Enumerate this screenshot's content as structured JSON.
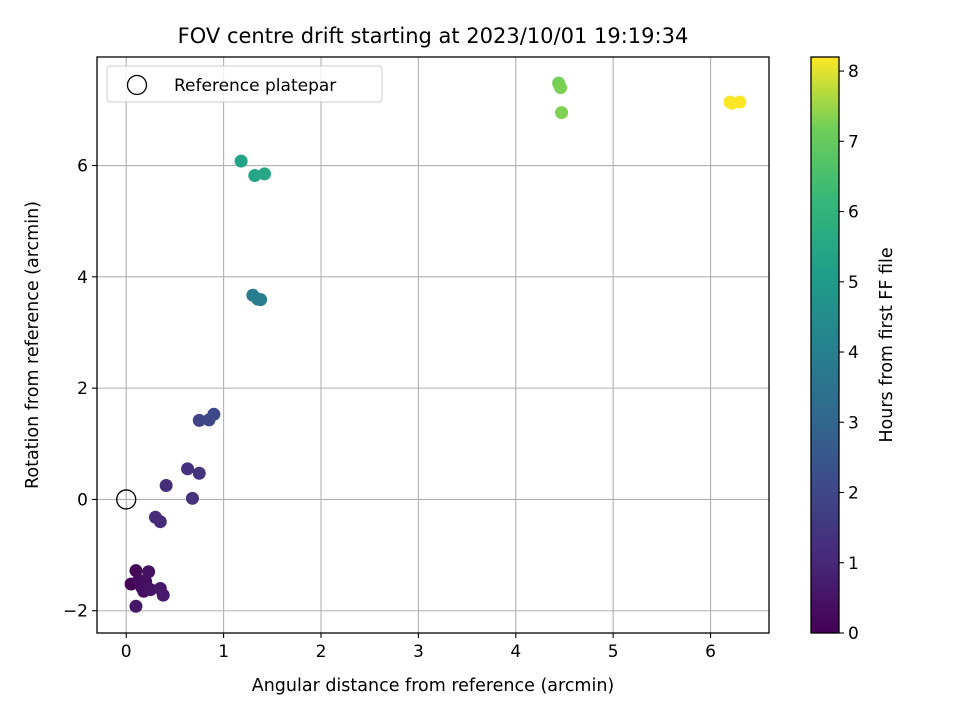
{
  "chart_data": {
    "type": "scatter",
    "title": "FOV centre drift starting at 2023/10/01 19:19:34",
    "xlabel": "Angular distance from reference (arcmin)",
    "ylabel": "Rotation from reference (arcmin)",
    "xlim": [
      -0.3,
      6.6
    ],
    "ylim": [
      -2.4,
      7.95
    ],
    "x_ticks": [
      0,
      1,
      2,
      3,
      4,
      5,
      6
    ],
    "y_ticks": [
      -2,
      0,
      2,
      4,
      6
    ],
    "grid": true,
    "legend": {
      "position": "top-left",
      "entries": [
        "Reference platepar"
      ]
    },
    "reference_point": {
      "x": 0,
      "y": 0,
      "label": "Reference platepar",
      "marker": "open-circle"
    },
    "colorbar": {
      "label": "Hours from first FF file",
      "range": [
        0,
        8.2
      ],
      "ticks": [
        0,
        1,
        2,
        3,
        4,
        5,
        6,
        7,
        8
      ],
      "colormap": "viridis"
    },
    "points": [
      {
        "x": 0.05,
        "y": -1.52,
        "c": 0.05
      },
      {
        "x": 0.1,
        "y": -1.28,
        "c": 0.15
      },
      {
        "x": 0.13,
        "y": -1.45,
        "c": 0.25
      },
      {
        "x": 0.16,
        "y": -1.58,
        "c": 0.3
      },
      {
        "x": 0.18,
        "y": -1.65,
        "c": 0.35
      },
      {
        "x": 0.2,
        "y": -1.48,
        "c": 0.4
      },
      {
        "x": 0.23,
        "y": -1.3,
        "c": 0.45
      },
      {
        "x": 0.25,
        "y": -1.62,
        "c": 0.5
      },
      {
        "x": 0.1,
        "y": -1.92,
        "c": 0.55
      },
      {
        "x": 0.35,
        "y": -1.6,
        "c": 0.6
      },
      {
        "x": 0.38,
        "y": -1.72,
        "c": 0.65
      },
      {
        "x": 0.3,
        "y": -0.32,
        "c": 1.1
      },
      {
        "x": 0.35,
        "y": -0.4,
        "c": 1.15
      },
      {
        "x": 0.41,
        "y": 0.25,
        "c": 1.2
      },
      {
        "x": 0.63,
        "y": 0.55,
        "c": 1.3
      },
      {
        "x": 0.68,
        "y": 0.02,
        "c": 1.35
      },
      {
        "x": 0.75,
        "y": 0.47,
        "c": 1.4
      },
      {
        "x": 0.75,
        "y": 1.42,
        "c": 1.9
      },
      {
        "x": 0.85,
        "y": 1.43,
        "c": 2.0
      },
      {
        "x": 0.9,
        "y": 1.53,
        "c": 2.05
      },
      {
        "x": 1.3,
        "y": 3.67,
        "c": 3.8
      },
      {
        "x": 1.35,
        "y": 3.6,
        "c": 3.9
      },
      {
        "x": 1.38,
        "y": 3.59,
        "c": 3.95
      },
      {
        "x": 1.18,
        "y": 6.08,
        "c": 5.3
      },
      {
        "x": 1.32,
        "y": 5.82,
        "c": 5.4
      },
      {
        "x": 1.42,
        "y": 5.85,
        "c": 5.45
      },
      {
        "x": 4.44,
        "y": 7.48,
        "c": 7.2
      },
      {
        "x": 4.46,
        "y": 7.4,
        "c": 7.25
      },
      {
        "x": 4.47,
        "y": 6.95,
        "c": 7.3
      },
      {
        "x": 6.2,
        "y": 7.14,
        "c": 8.15
      },
      {
        "x": 6.22,
        "y": 7.12,
        "c": 8.18
      },
      {
        "x": 6.3,
        "y": 7.14,
        "c": 8.2
      }
    ]
  }
}
